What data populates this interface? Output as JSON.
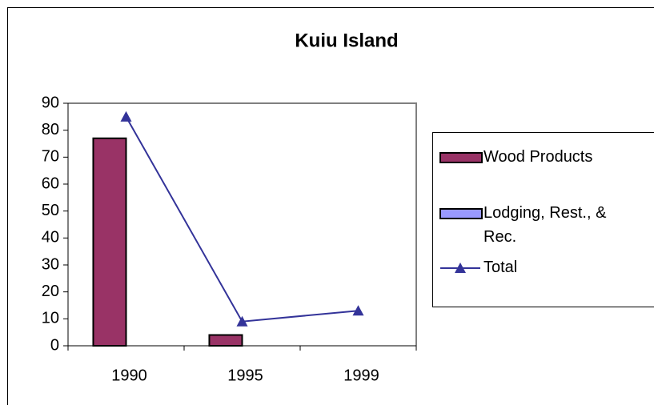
{
  "chart_data": {
    "type": "bar",
    "title": "Kuiu Island",
    "categories": [
      "1990",
      "1995",
      "1999"
    ],
    "series": [
      {
        "name": "Wood Products",
        "type": "bar",
        "color": "#993366",
        "values": [
          77,
          4,
          null
        ]
      },
      {
        "name": "Lodging, Rest., & Rec.",
        "type": "bar",
        "color": "#9999ff",
        "values": [
          null,
          null,
          null
        ]
      },
      {
        "name": "Total",
        "type": "line",
        "color": "#333399",
        "values": [
          85,
          9,
          13
        ]
      }
    ],
    "ylim": [
      0,
      90
    ],
    "yticks": [
      0,
      10,
      20,
      30,
      40,
      50,
      60,
      70,
      80,
      90
    ],
    "grid": false,
    "legend": "right"
  }
}
